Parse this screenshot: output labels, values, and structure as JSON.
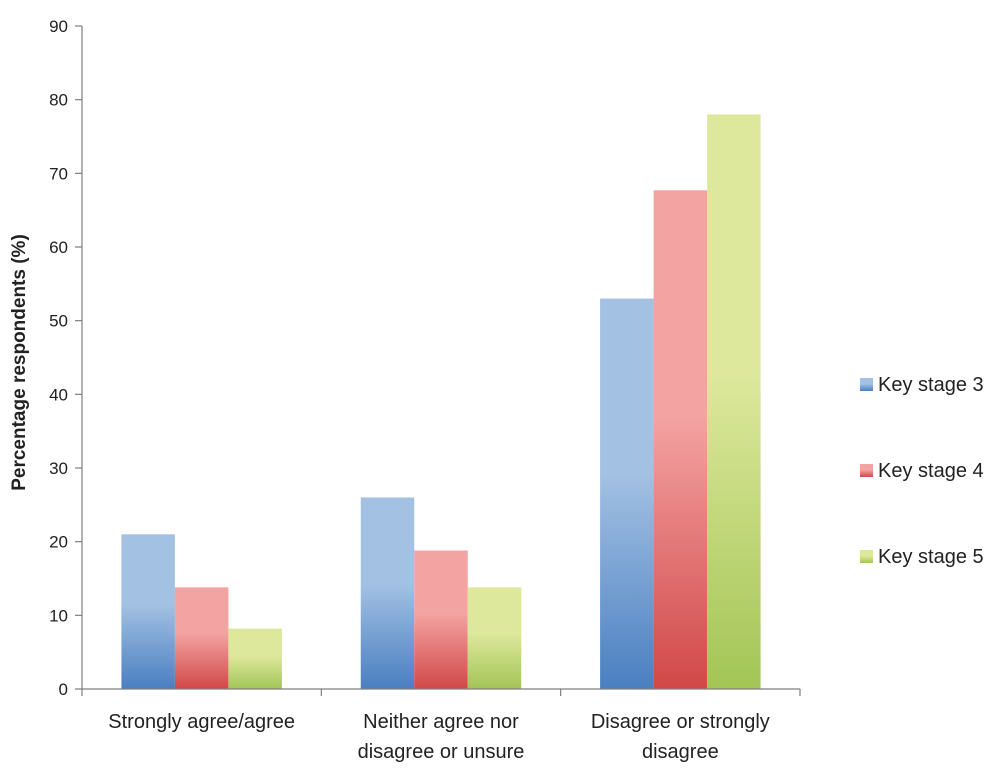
{
  "chart_data": {
    "type": "bar",
    "title": "",
    "xlabel": "",
    "ylabel": "Percentage respondents (%)",
    "ylim": [
      0,
      90
    ],
    "yticks": [
      0,
      10,
      20,
      30,
      40,
      50,
      60,
      70,
      80,
      90
    ],
    "grid": false,
    "legend_position": "right",
    "categories": [
      [
        "Strongly agree/agree"
      ],
      [
        "Neither agree nor",
        "disagree or unsure"
      ],
      [
        "Disagree or strongly",
        "disagree"
      ]
    ],
    "series": [
      {
        "name": "Key stage 3",
        "color": "#4a7fc1",
        "light": "#a3c1e3",
        "values": [
          21,
          26,
          53
        ]
      },
      {
        "name": "Key stage 4",
        "color": "#d14848",
        "light": "#f4a3a3",
        "values": [
          13.8,
          18.8,
          67.7
        ]
      },
      {
        "name": "Key stage 5",
        "color": "#a3c556",
        "light": "#dde89c",
        "values": [
          8.2,
          13.8,
          78
        ]
      }
    ]
  }
}
